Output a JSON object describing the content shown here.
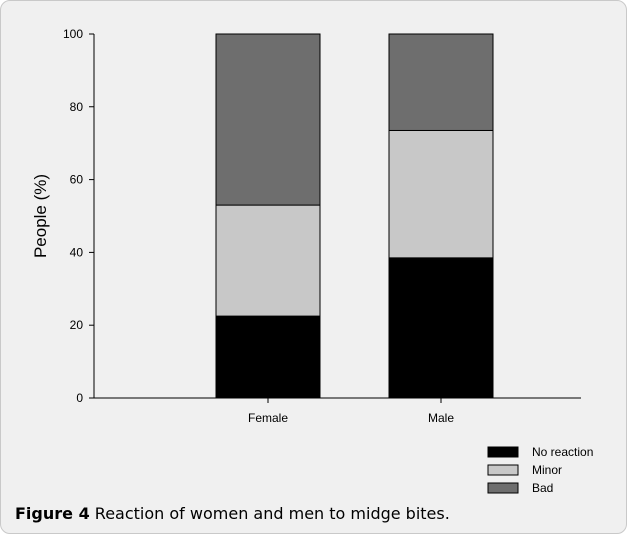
{
  "figure": {
    "caption_label": "Figure 4",
    "caption_text": "Reaction of women and men to midge bites."
  },
  "colors": {
    "background": "#f0f0f0",
    "No reaction": "#000000",
    "Minor": "#c8c8c8",
    "Bad": "#6e6e6e"
  },
  "chart_data": {
    "type": "bar",
    "stacked": true,
    "categories": [
      "Female",
      "Male"
    ],
    "series": [
      {
        "name": "No reaction",
        "values": [
          22.5,
          38.5
        ]
      },
      {
        "name": "Minor",
        "values": [
          30.5,
          35.0
        ]
      },
      {
        "name": "Bad",
        "values": [
          47.0,
          26.5
        ]
      }
    ],
    "title": "",
    "xlabel": "",
    "ylabel": "People (%)",
    "ylim": [
      0,
      100
    ],
    "yticks": [
      0,
      20,
      40,
      60,
      80,
      100
    ],
    "grid": false,
    "legend_position": "bottom-right"
  }
}
